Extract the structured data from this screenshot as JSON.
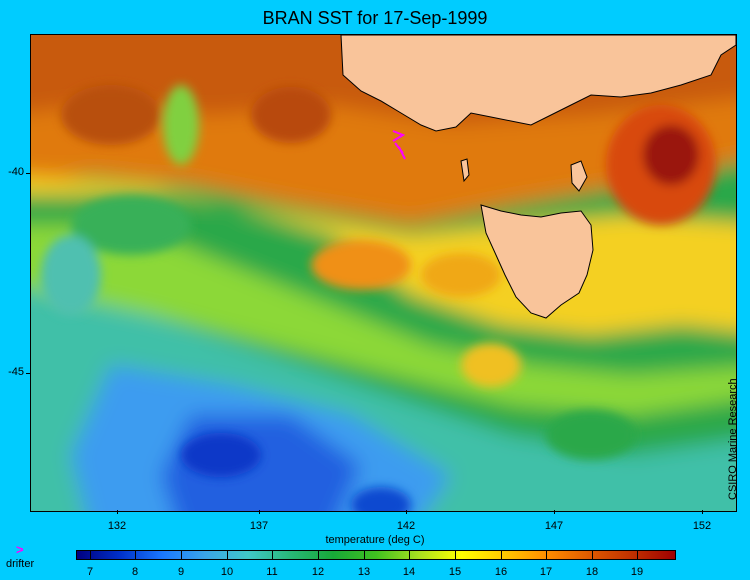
{
  "title": "BRAN SST for 17-Sep-1999",
  "map": {
    "lon_range": [
      128.5,
      153.5
    ],
    "lat_range": [
      -48.5,
      -36.5
    ],
    "x_ticks": [
      "132",
      "137",
      "142",
      "147",
      "152"
    ],
    "y_ticks": [
      "-40",
      "-45"
    ],
    "x_axis_title": "temperature (deg C)",
    "credit": "CSIRO Marine Research",
    "land_color": "#f9c49a",
    "drifter_color": "#ff00ff",
    "icons": [
      "drifter-arrow-icon"
    ]
  },
  "legend": {
    "marker": ">",
    "label": "drifter"
  },
  "colorbar": {
    "ticks": [
      "7",
      "8",
      "9",
      "10",
      "11",
      "12",
      "13",
      "14",
      "15",
      "16",
      "17",
      "18",
      "19"
    ],
    "range": [
      6.7,
      19.8
    ],
    "colors": [
      "#000080",
      "#1a78ff",
      "#40c8c8",
      "#18a838",
      "#a8e020",
      "#ffff00",
      "#ff8c00",
      "#c03000",
      "#a00000"
    ]
  }
}
